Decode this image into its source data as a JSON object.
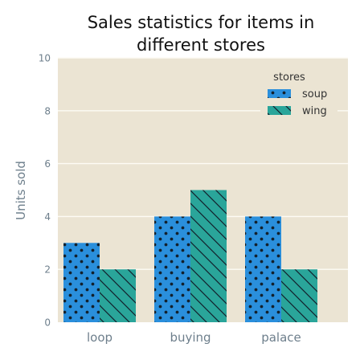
{
  "chart_data": {
    "type": "bar",
    "title": "Sales statistics for items in different stores",
    "title_lines": [
      "Sales statistics for items in",
      "different stores"
    ],
    "xlabel": "",
    "ylabel": "Units sold",
    "categories": [
      "loop",
      "buying",
      "palace"
    ],
    "series": [
      {
        "name": "soup",
        "values": [
          3,
          4,
          4
        ],
        "color": "#2a8fdc",
        "pattern": "dots"
      },
      {
        "name": "wing",
        "values": [
          2,
          5,
          2
        ],
        "color": "#2aa59a",
        "pattern": "diagonal-hatch"
      }
    ],
    "ylim": [
      0,
      10
    ],
    "yticks": [
      0,
      2,
      4,
      6,
      8,
      10
    ],
    "grid": true,
    "legend": {
      "title": "stores",
      "placement": "top-right"
    },
    "colors": {
      "plot_background": "#ebe4d3",
      "grid": "#fdfbf5",
      "text": "#6e7f8c"
    }
  }
}
